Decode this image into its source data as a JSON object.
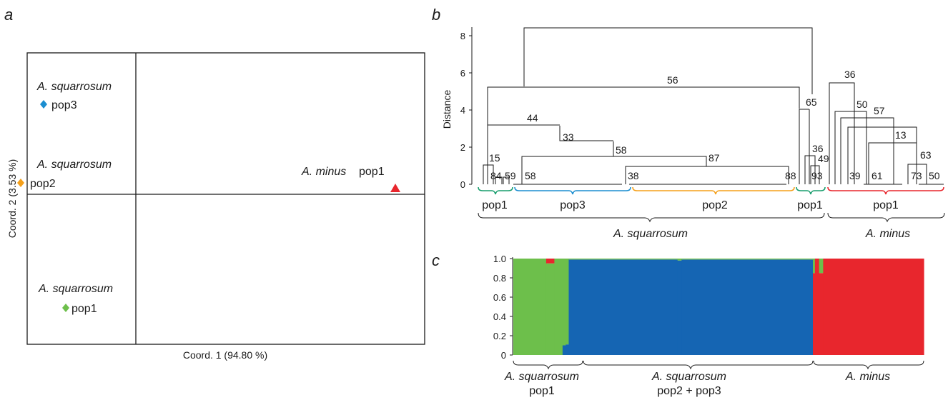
{
  "panels": {
    "a": "a",
    "b": "b",
    "c": "c"
  },
  "chart_data": [
    {
      "panel": "a",
      "type": "scatter",
      "xlabel": "Coord. 1 (94.80 %)",
      "ylabel": "Coord. 2 (3.53 %)",
      "quadrant_lines": true,
      "points": [
        {
          "species": "A. squarrosum",
          "pop": "pop3",
          "x": 0.0,
          "y": 0.59,
          "color": "#1b8ed0",
          "marker": "diamond"
        },
        {
          "species": "A. squarrosum",
          "pop": "pop2",
          "x": 0.0,
          "y": 0.06,
          "color": "#f5a01a",
          "marker": "diamond"
        },
        {
          "species": "A. squarrosum",
          "pop": "pop1",
          "x": 0.52,
          "y": -0.73,
          "color": "#6dbf4b",
          "marker": "diamond"
        },
        {
          "species": "A. minus",
          "pop": "pop1",
          "x": 2.53,
          "y": 0.03,
          "color": "#e8262d",
          "marker": "triangle"
        }
      ]
    },
    {
      "panel": "b",
      "type": "dendrogram",
      "ylabel": "Distance",
      "ylim": [
        0,
        9
      ],
      "yticks": [
        0,
        2,
        4,
        6,
        8
      ],
      "bootstrap_labels": [
        "56",
        "44",
        "33",
        "15",
        "84",
        "59",
        "58",
        "58",
        "38",
        "87",
        "88",
        "65",
        "36",
        "49",
        "93",
        "36",
        "50",
        "57",
        "13",
        "63",
        "39",
        "61",
        "73",
        "50"
      ],
      "clusters": [
        {
          "label": "pop1",
          "color": "#1a9e6e"
        },
        {
          "label": "pop3",
          "color": "#1b8ed0"
        },
        {
          "label": "pop2",
          "color": "#f5a01a"
        },
        {
          "label": "pop1",
          "color": "#1a9e6e"
        },
        {
          "label": "pop1",
          "color": "#e8262d"
        }
      ],
      "groups": [
        "A. squarrosum",
        "A. minus"
      ]
    },
    {
      "panel": "c",
      "type": "bar",
      "stacked": true,
      "ylim": [
        0,
        1.0
      ],
      "yticks": [
        "0",
        "0.2",
        "0.4",
        "0.6",
        "0.8",
        "1.0"
      ],
      "series": [
        {
          "color": "#6dbf4b"
        },
        {
          "color": "#1565b3"
        },
        {
          "color": "#e8262d"
        }
      ],
      "segments": [
        {
          "cluster": "green",
          "start": 0.0,
          "end": 0.08,
          "green": 1.0,
          "blue": 0.0,
          "red": 0.0
        },
        {
          "cluster": "green",
          "start": 0.08,
          "end": 0.1,
          "green": 0.95,
          "blue": 0.0,
          "red": 0.05
        },
        {
          "cluster": "green",
          "start": 0.1,
          "end": 0.12,
          "green": 1.0,
          "blue": 0.0,
          "red": 0.0
        },
        {
          "cluster": "mix",
          "start": 0.12,
          "end": 0.128,
          "green": 0.9,
          "blue": 0.1,
          "red": 0.0
        },
        {
          "cluster": "mix",
          "start": 0.128,
          "end": 0.135,
          "green": 0.89,
          "blue": 0.11,
          "red": 0.0
        },
        {
          "cluster": "blue",
          "start": 0.135,
          "end": 0.4,
          "green": 0.01,
          "blue": 0.99,
          "red": 0.0
        },
        {
          "cluster": "blue",
          "start": 0.4,
          "end": 0.41,
          "green": 0.02,
          "blue": 0.98,
          "red": 0.0
        },
        {
          "cluster": "blue",
          "start": 0.41,
          "end": 0.73,
          "green": 0.01,
          "blue": 0.99,
          "red": 0.0
        },
        {
          "cluster": "red",
          "start": 0.73,
          "end": 0.735,
          "green": 0.15,
          "blue": 0.0,
          "red": 0.85
        },
        {
          "cluster": "red",
          "start": 0.735,
          "end": 0.745,
          "green": 0.0,
          "blue": 0.0,
          "red": 1.0
        },
        {
          "cluster": "red",
          "start": 0.745,
          "end": 0.755,
          "green": 0.15,
          "blue": 0.0,
          "red": 0.85
        },
        {
          "cluster": "red",
          "start": 0.755,
          "end": 1.0,
          "green": 0.0,
          "blue": 0.0,
          "red": 1.0
        }
      ],
      "groups": [
        {
          "species": "A. squarrosum",
          "pop": "pop1"
        },
        {
          "species": "A. squarrosum",
          "pop": "pop2 + pop3"
        },
        {
          "species": "A. minus",
          "pop": ""
        }
      ]
    }
  ]
}
